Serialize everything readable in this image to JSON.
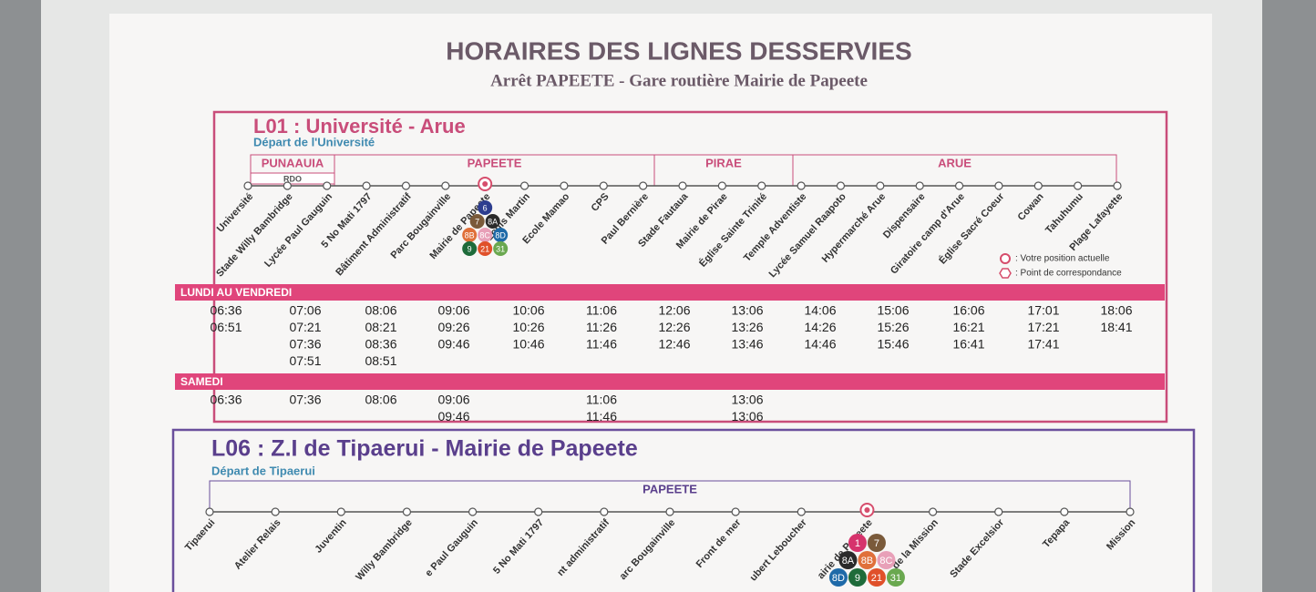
{
  "header": {
    "title": "HORAIRES DES LIGNES DESSERVIES",
    "subtitle": "Arrêt PAPEETE - Gare routière Mairie de Papeete"
  },
  "lines": [
    {
      "title": "L01 : Université - Arue",
      "departure": "Départ de l'Université",
      "zones": [
        {
          "name": "PUNAAUIA",
          "sub": "RDO"
        },
        {
          "name": "PAPEETE"
        },
        {
          "name": "PIRAE"
        },
        {
          "name": "ARUE"
        }
      ],
      "stops": [
        "Université",
        "Stade Willy Bambridge",
        "Lycée Paul Gauguin",
        "5 No Mati 1797",
        "Bâtiment Administratif",
        "Parc Bougainville",
        "Mairie de Papeete",
        "Louis Martin",
        "Ecole Mamao",
        "CPS",
        "Paul Bernière",
        "Stade Fautaua",
        "Mairie de Pirae",
        "Église Sainte Trinité",
        "Temple Adventiste",
        "Lycée Samuel Raapoto",
        "Hypermarché Arue",
        "Dispensaire",
        "Giratoire camp d'Arue",
        "Église Sacré Coeur",
        "Cowan",
        "Tahuhumu",
        "Plage Lafayette"
      ],
      "connections": [
        "6",
        "7",
        "8A",
        "8B",
        "8C",
        "8D",
        "9",
        "21",
        "31"
      ],
      "legend": [
        ": Votre position actuelle",
        ": Point de correspondance"
      ],
      "schedules": [
        {
          "label": "LUNDI AU VENDREDI",
          "columns": [
            [
              "06:36",
              "06:51"
            ],
            [
              "07:06",
              "07:21",
              "07:36",
              "07:51"
            ],
            [
              "08:06",
              "08:21",
              "08:36",
              "08:51"
            ],
            [
              "09:06",
              "09:26",
              "09:46"
            ],
            [
              "10:06",
              "10:26",
              "10:46"
            ],
            [
              "11:06",
              "11:26",
              "11:46"
            ],
            [
              "12:06",
              "12:26",
              "12:46"
            ],
            [
              "13:06",
              "13:26",
              "13:46"
            ],
            [
              "14:06",
              "14:26",
              "14:46"
            ],
            [
              "15:06",
              "15:26",
              "15:46"
            ],
            [
              "16:06",
              "16:21",
              "16:41"
            ],
            [
              "17:01",
              "17:21",
              "17:41"
            ],
            [
              "18:06",
              "18:41"
            ]
          ]
        },
        {
          "label": "SAMEDI",
          "columns": [
            [
              "06:36"
            ],
            [
              "07:36"
            ],
            [
              "08:06"
            ],
            [
              "09:06",
              "09:46"
            ],
            [],
            [
              "11:06",
              "11:46"
            ],
            [],
            [
              "13:06",
              "13:06"
            ]
          ]
        }
      ]
    },
    {
      "title": "L06 : Z.I de Tipaerui - Mairie de Papeete",
      "departure": "Départ de Tipaerui",
      "zones": [
        {
          "name": "PAPEETE"
        }
      ],
      "stops": [
        "Tipaerui",
        "Atelier Relais",
        "Juventin",
        "Willy Bambridge",
        "e Paul Gauguin",
        "5 No Mati 1797",
        "nt administratif",
        "arc Bougainville",
        "Front de mer",
        "ubert Leboucher",
        "airie de Papeete",
        "de la Mission",
        "Stade Excelsior",
        "Tepapa",
        "Mission"
      ],
      "connections": [
        "1",
        "7",
        "8A",
        "8B",
        "8C",
        "8D",
        "9",
        "21",
        "31"
      ]
    }
  ]
}
